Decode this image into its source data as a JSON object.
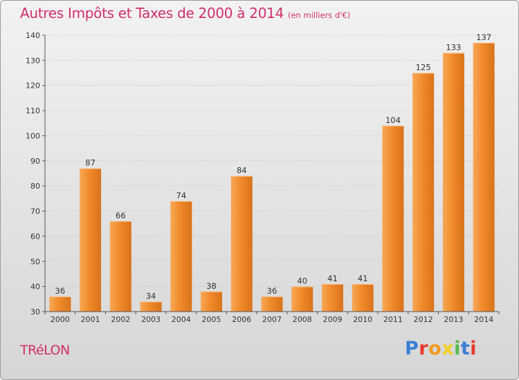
{
  "header": {
    "title": "Autres Impôts et Taxes de 2000 à 2014",
    "subtitle": "(en milliers d'€)"
  },
  "footer": {
    "town": "TRéLON",
    "logo_text": "Proxiti",
    "logo_colors": [
      "#3a7fd5",
      "#e8392b",
      "#f29a1f",
      "#f2d020",
      "#55b84a",
      "#3a7fd5",
      "#e8392b"
    ]
  },
  "chart_data": {
    "type": "bar",
    "categories": [
      "2000",
      "2001",
      "2002",
      "2003",
      "2004",
      "2005",
      "2006",
      "2007",
      "2008",
      "2009",
      "2010",
      "2011",
      "2012",
      "2013",
      "2014"
    ],
    "values": [
      36,
      87,
      66,
      34,
      74,
      38,
      84,
      36,
      40,
      41,
      41,
      104,
      125,
      133,
      137
    ],
    "ylim": [
      30,
      140
    ],
    "yticks": [
      30,
      40,
      50,
      60,
      70,
      80,
      90,
      100,
      110,
      120,
      130,
      140
    ],
    "grid": true,
    "bar_color": "#f08a2a",
    "bar_color_light": "#f7a857",
    "bar_color_dark": "#d9731c"
  }
}
